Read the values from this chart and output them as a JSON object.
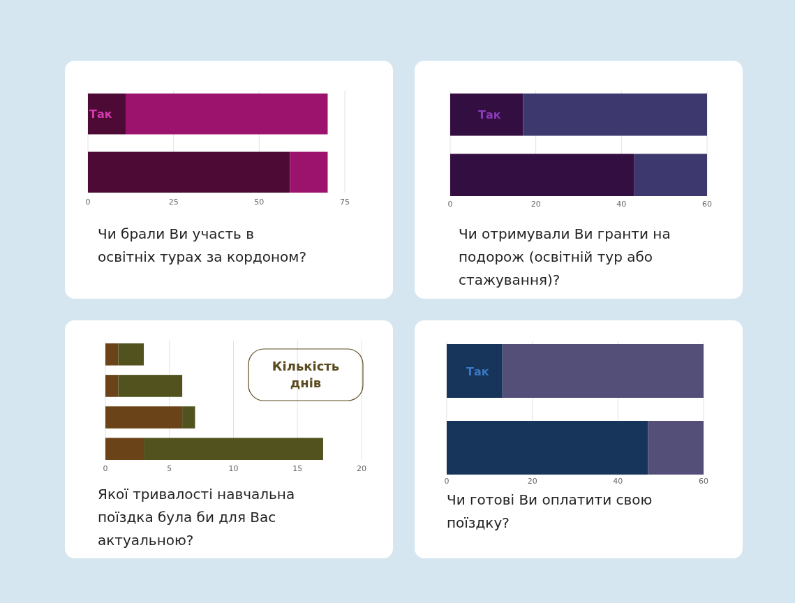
{
  "chart_data": [
    {
      "type": "bar",
      "orientation": "horizontal",
      "stacked": true,
      "title": "Чи брали Ви участь в освітніх турах за кордоном?",
      "categories": [
        null,
        null
      ],
      "series": [
        {
          "color": "#4c0a34",
          "values": [
            11,
            59
          ]
        },
        {
          "color": "#9c136e",
          "values": [
            59,
            11
          ]
        }
      ],
      "xlim": [
        0,
        75
      ],
      "xticks": [
        0,
        25,
        50,
        75
      ],
      "grid": "x",
      "annotations": [
        "Так"
      ]
    },
    {
      "type": "bar",
      "orientation": "horizontal",
      "stacked": true,
      "title": "Чи отримували Ви гранти на подорож (освітній тур або стажування)?",
      "categories": [
        null,
        null
      ],
      "series": [
        {
          "color": "#330e40",
          "values": [
            17,
            43
          ]
        },
        {
          "color": "#3d396e",
          "values": [
            43,
            17
          ]
        }
      ],
      "xlim": [
        0,
        60
      ],
      "xticks": [
        0,
        20,
        40,
        60
      ],
      "grid": "x",
      "annotations": [
        "Так"
      ]
    },
    {
      "type": "bar",
      "orientation": "horizontal",
      "stacked": true,
      "title": "Якої тривалості навчальна поїздка була би для Вас актуальною?",
      "categories": [
        null,
        null,
        null,
        null
      ],
      "series": [
        {
          "color": "#6a4418",
          "values": [
            1,
            1,
            6,
            3
          ]
        },
        {
          "color": "#52521e",
          "values": [
            2,
            5,
            1,
            14
          ]
        }
      ],
      "xlim": [
        0,
        20
      ],
      "xticks": [
        0,
        5,
        10,
        15,
        20
      ],
      "grid": "x",
      "annotations": [
        "Кількість днів"
      ]
    },
    {
      "type": "bar",
      "orientation": "horizontal",
      "stacked": true,
      "title": "Чи готові Ви оплатити свою поїздку?",
      "categories": [
        null,
        null
      ],
      "series": [
        {
          "color": "#17345a",
          "values": [
            13,
            47
          ]
        },
        {
          "color": "#544f79",
          "values": [
            47,
            13
          ]
        }
      ],
      "xlim": [
        0,
        60
      ],
      "xticks": [
        0,
        20,
        40,
        60
      ],
      "grid": "x",
      "annotations": [
        "Так"
      ]
    }
  ]
}
